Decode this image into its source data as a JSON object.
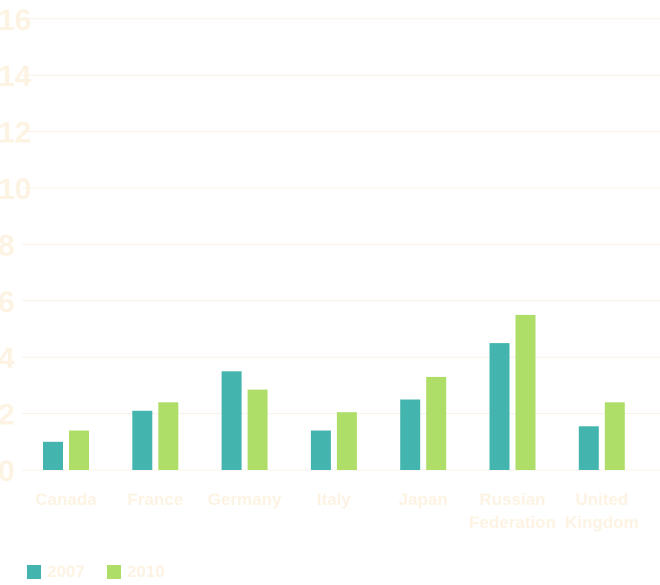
{
  "chart_data": {
    "type": "bar",
    "categories": [
      "Canada",
      "France",
      "Germany",
      "Italy",
      "Japan",
      "Russian Federation",
      "United Kingdom"
    ],
    "category_lines": [
      [
        "Canada"
      ],
      [
        "France"
      ],
      [
        "Germany"
      ],
      [
        "Italy"
      ],
      [
        "Japan"
      ],
      [
        "Russian",
        "Federation"
      ],
      [
        "United",
        "Kingdom"
      ]
    ],
    "series": [
      {
        "name": "2007",
        "color": "#44b5ae",
        "values": [
          1.0,
          2.1,
          3.5,
          1.4,
          2.5,
          4.5,
          1.55
        ]
      },
      {
        "name": "2010",
        "color": "#aede68",
        "values": [
          1.4,
          2.4,
          2.85,
          2.05,
          3.3,
          5.5,
          2.4
        ]
      }
    ],
    "yticks": [
      "0",
      "2",
      "4",
      "6",
      "8",
      "10",
      "12",
      "14",
      "16"
    ],
    "ylim": [
      0,
      16
    ],
    "grid": true,
    "legend_position": "bottom-left"
  }
}
